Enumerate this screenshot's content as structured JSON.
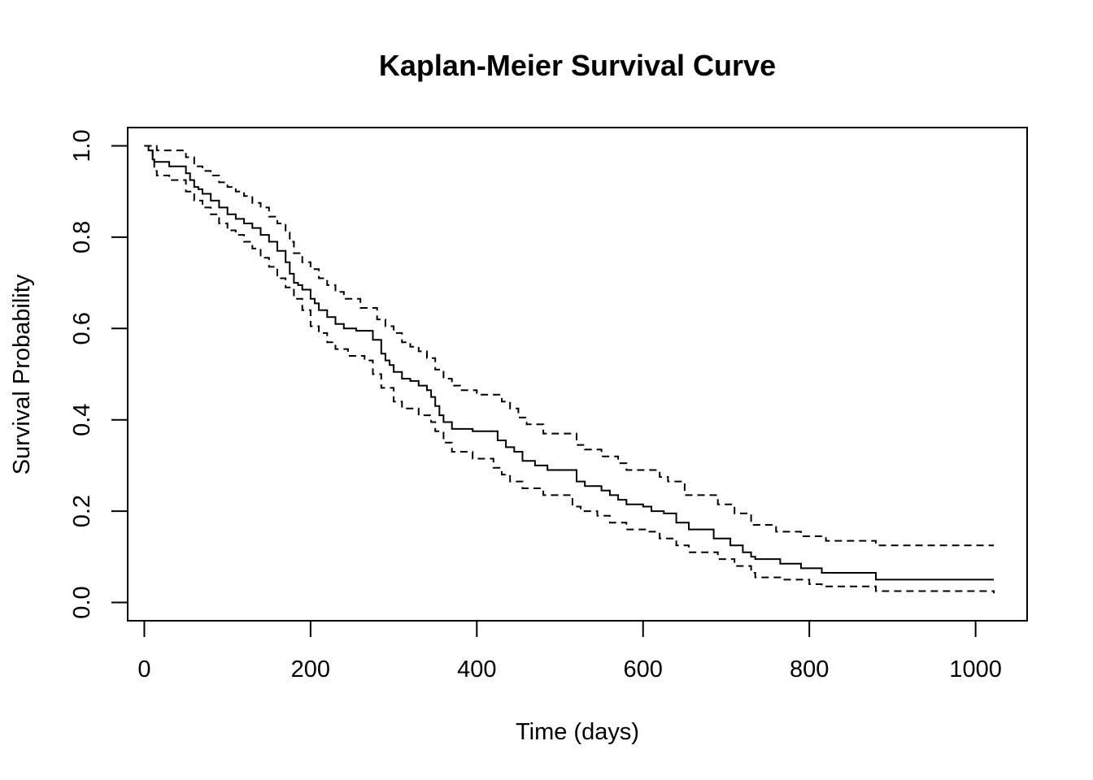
{
  "chart_data": {
    "type": "line",
    "title": "Kaplan-Meier Survival Curve",
    "xlabel": "Time (days)",
    "ylabel": "Survival Probability",
    "xlim": [
      -20,
      1062
    ],
    "ylim": [
      -0.04,
      1.04
    ],
    "xticks": [
      0,
      200,
      400,
      600,
      800,
      1000
    ],
    "yticks": [
      0.0,
      0.2,
      0.4,
      0.6,
      0.8,
      1.0
    ],
    "xtick_labels": [
      "0",
      "200",
      "400",
      "600",
      "800",
      "1000"
    ],
    "ytick_labels": [
      "0.0",
      "0.2",
      "0.4",
      "0.6",
      "0.8",
      "1.0"
    ],
    "grid": false,
    "line_style": "step",
    "series": [
      {
        "role": "estimate",
        "style": "solid",
        "x": [
          0,
          5,
          10,
          12,
          30,
          50,
          55,
          60,
          65,
          70,
          80,
          90,
          100,
          110,
          120,
          130,
          140,
          150,
          160,
          170,
          175,
          180,
          185,
          190,
          200,
          205,
          210,
          220,
          230,
          240,
          255,
          275,
          285,
          290,
          295,
          300,
          310,
          320,
          330,
          340,
          345,
          350,
          355,
          360,
          370,
          395,
          425,
          435,
          445,
          455,
          470,
          485,
          510,
          520,
          530,
          550,
          560,
          570,
          580,
          600,
          610,
          625,
          640,
          655,
          665,
          685,
          705,
          720,
          730,
          735,
          765,
          790,
          815,
          880,
          1022
        ],
        "y": [
          1.0,
          0.99,
          0.97,
          0.965,
          0.955,
          0.94,
          0.925,
          0.91,
          0.905,
          0.895,
          0.88,
          0.865,
          0.85,
          0.84,
          0.83,
          0.82,
          0.805,
          0.79,
          0.77,
          0.745,
          0.72,
          0.7,
          0.695,
          0.685,
          0.665,
          0.655,
          0.64,
          0.625,
          0.61,
          0.6,
          0.595,
          0.575,
          0.545,
          0.53,
          0.52,
          0.505,
          0.49,
          0.485,
          0.475,
          0.465,
          0.45,
          0.43,
          0.41,
          0.395,
          0.38,
          0.375,
          0.355,
          0.34,
          0.33,
          0.31,
          0.3,
          0.29,
          0.29,
          0.265,
          0.255,
          0.245,
          0.235,
          0.225,
          0.215,
          0.21,
          0.2,
          0.195,
          0.175,
          0.16,
          0.16,
          0.14,
          0.125,
          0.11,
          0.1,
          0.095,
          0.085,
          0.075,
          0.065,
          0.05,
          0.05
        ]
      },
      {
        "role": "upper confidence limit",
        "style": "dashed",
        "x": [
          0,
          15,
          50,
          60,
          70,
          80,
          90,
          100,
          110,
          120,
          130,
          140,
          150,
          160,
          170,
          175,
          180,
          190,
          200,
          210,
          220,
          230,
          240,
          260,
          280,
          290,
          300,
          310,
          320,
          330,
          340,
          350,
          360,
          370,
          380,
          400,
          430,
          440,
          450,
          460,
          480,
          520,
          530,
          550,
          570,
          580,
          620,
          630,
          650,
          690,
          710,
          730,
          760,
          790,
          820,
          880,
          1022
        ],
        "y": [
          1.0,
          0.99,
          0.975,
          0.955,
          0.945,
          0.935,
          0.92,
          0.91,
          0.9,
          0.89,
          0.875,
          0.865,
          0.845,
          0.83,
          0.81,
          0.79,
          0.765,
          0.745,
          0.73,
          0.71,
          0.695,
          0.68,
          0.665,
          0.645,
          0.62,
          0.605,
          0.59,
          0.57,
          0.56,
          0.55,
          0.535,
          0.51,
          0.49,
          0.475,
          0.465,
          0.455,
          0.44,
          0.425,
          0.405,
          0.39,
          0.37,
          0.345,
          0.335,
          0.32,
          0.305,
          0.29,
          0.275,
          0.265,
          0.235,
          0.215,
          0.195,
          0.17,
          0.155,
          0.145,
          0.135,
          0.125,
          0.125
        ]
      },
      {
        "role": "lower confidence limit",
        "style": "dashed",
        "x": [
          0,
          10,
          12,
          15,
          30,
          50,
          60,
          70,
          80,
          90,
          100,
          110,
          120,
          130,
          140,
          150,
          160,
          170,
          180,
          190,
          200,
          210,
          220,
          230,
          245,
          265,
          275,
          285,
          300,
          310,
          330,
          345,
          350,
          360,
          370,
          395,
          420,
          430,
          440,
          455,
          480,
          515,
          525,
          545,
          560,
          580,
          605,
          620,
          640,
          655,
          690,
          710,
          730,
          735,
          765,
          800,
          815,
          880,
          1022
        ],
        "y": [
          1.0,
          0.97,
          0.945,
          0.935,
          0.925,
          0.9,
          0.88,
          0.865,
          0.85,
          0.83,
          0.815,
          0.805,
          0.79,
          0.775,
          0.755,
          0.735,
          0.71,
          0.69,
          0.665,
          0.64,
          0.605,
          0.59,
          0.57,
          0.555,
          0.54,
          0.53,
          0.5,
          0.47,
          0.44,
          0.425,
          0.41,
          0.395,
          0.375,
          0.35,
          0.33,
          0.315,
          0.295,
          0.28,
          0.265,
          0.25,
          0.235,
          0.21,
          0.2,
          0.19,
          0.175,
          0.16,
          0.155,
          0.14,
          0.125,
          0.11,
          0.095,
          0.08,
          0.065,
          0.055,
          0.05,
          0.04,
          0.035,
          0.025,
          0.02
        ]
      }
    ]
  }
}
